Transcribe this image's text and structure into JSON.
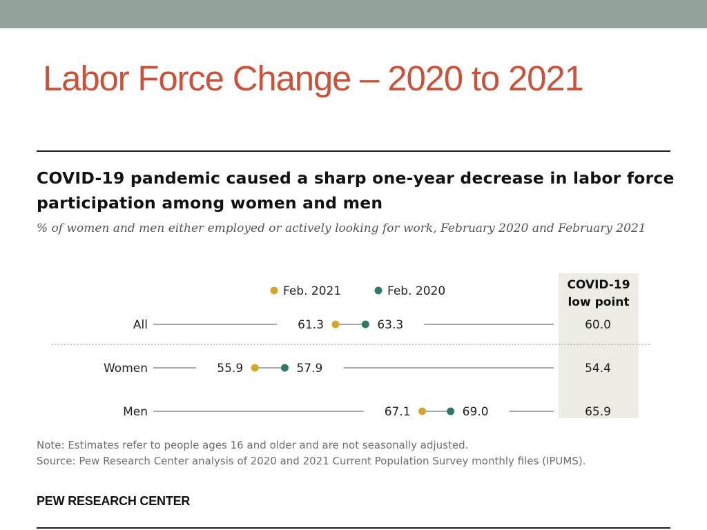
{
  "slide": {
    "title": "Labor Force Change – 2020 to 2021",
    "colors": {
      "top_bar": "#93a29a",
      "title": "#c8523a"
    }
  },
  "chart_data": {
    "type": "dot-plot",
    "title": "COVID-19 pandemic caused a sharp one-year decrease in labor force participation among women and men",
    "subtitle": "% of women and men either employed or actively looking for work, February 2020 and February 2021",
    "legend": [
      {
        "name": "Feb. 2021",
        "color": "#d4a72c"
      },
      {
        "name": "Feb. 2020",
        "color": "#2e7a67"
      }
    ],
    "categories": [
      "All",
      "Women",
      "Men"
    ],
    "series": [
      {
        "name": "Feb. 2021",
        "values": [
          61.3,
          55.9,
          67.1
        ]
      },
      {
        "name": "Feb. 2020",
        "values": [
          63.3,
          57.9,
          69.0
        ]
      }
    ],
    "low_point": {
      "header_line1": "COVID-19",
      "header_line2": "low point",
      "values": [
        60.0,
        54.4,
        65.9
      ],
      "background": "#ecece4"
    },
    "xlim": [
      49.1,
      75.9
    ],
    "note": "Note: Estimates refer to people ages 16 and older and are not seasonally adjusted.",
    "source": "Source: Pew Research Center analysis of 2020 and 2021 Current Population Survey monthly files (IPUMS).",
    "org": "PEW RESEARCH CENTER"
  }
}
